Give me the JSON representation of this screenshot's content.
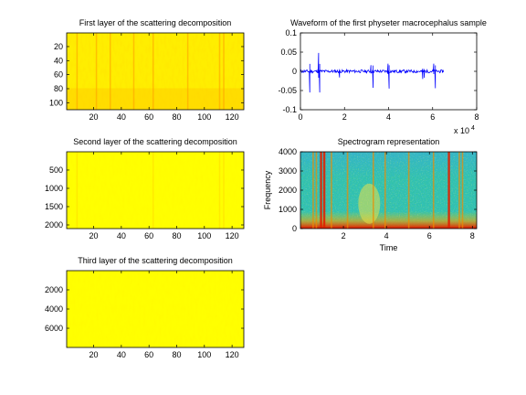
{
  "figure": {
    "background": "#ffffff"
  },
  "chart_data": [
    {
      "id": "layer1",
      "type": "heatmap",
      "title": "First layer of the scattering decomposition",
      "xlabel": "",
      "ylabel": "",
      "xlim": [
        0.5,
        128.5
      ],
      "ylim": [
        0.5,
        110
      ],
      "y_reversed": true,
      "xticks": [
        20,
        40,
        60,
        80,
        100,
        120
      ],
      "yticks": [
        20,
        40,
        60,
        80,
        100
      ],
      "colormap": "jet",
      "base_color": "#ffee00",
      "streak_columns": [
        8,
        22,
        32,
        49,
        63,
        88,
        111,
        114
      ],
      "streak_color": "#ff9d00"
    },
    {
      "id": "waveform",
      "type": "line",
      "title": "Waveform of the first physeter macrocephalus sample",
      "xlabel": "",
      "ylabel": "",
      "xlim": [
        0,
        80000
      ],
      "ylim": [
        -0.1,
        0.1
      ],
      "xticks": [
        0,
        2,
        4,
        6,
        8
      ],
      "x_multiplier_label": "x 10",
      "x_multiplier_exponent": "4",
      "yticks": [
        -0.1,
        -0.05,
        0,
        0.05,
        0.1
      ],
      "line_color": "#0000ff",
      "signal_end": 65000,
      "spikes": [
        {
          "x": 4300,
          "y": -0.055
        },
        {
          "x": 8300,
          "y": 0.048
        },
        {
          "x": 8700,
          "y": -0.055
        },
        {
          "x": 17800,
          "y": -0.016
        },
        {
          "x": 32000,
          "y": 0.016
        },
        {
          "x": 33000,
          "y": -0.043
        },
        {
          "x": 39700,
          "y": 0.02
        },
        {
          "x": 40300,
          "y": -0.045
        },
        {
          "x": 55600,
          "y": -0.02
        },
        {
          "x": 56300,
          "y": -0.017
        },
        {
          "x": 60600,
          "y": 0.02
        },
        {
          "x": 61300,
          "y": -0.044
        }
      ]
    },
    {
      "id": "layer2",
      "type": "heatmap",
      "title": "Second layer of the scattering decomposition",
      "xlabel": "",
      "ylabel": "",
      "xlim": [
        0.5,
        128.5
      ],
      "ylim": [
        1,
        2100
      ],
      "y_reversed": true,
      "xticks": [
        20,
        40,
        60,
        80,
        100,
        120
      ],
      "yticks": [
        500,
        1000,
        1500,
        2000
      ],
      "colormap": "jet",
      "base_color": "#ffff00",
      "streak_columns": [
        8,
        63,
        111,
        114
      ],
      "streak_color": "#ffd800"
    },
    {
      "id": "spectrogram",
      "type": "heatmap",
      "title": "Spectrogram representation",
      "xlabel": "Time",
      "ylabel": "Frequency",
      "xlim": [
        0,
        8.2
      ],
      "ylim": [
        0,
        4000
      ],
      "xticks": [
        2,
        4,
        6,
        8
      ],
      "yticks": [
        0,
        1000,
        2000,
        3000,
        4000
      ],
      "colormap": "jet",
      "base_color": "#31c2aa",
      "click_times": [
        0.6,
        0.75,
        0.95,
        1.1,
        1.45,
        2.2,
        3.4,
        3.95,
        5.05,
        6.2,
        6.9,
        7.4,
        7.55
      ]
    },
    {
      "id": "layer3",
      "type": "heatmap",
      "title": "Third layer of the scattering decomposition",
      "xlabel": "",
      "ylabel": "",
      "xlim": [
        0.5,
        128.5
      ],
      "ylim": [
        1,
        8000
      ],
      "y_reversed": true,
      "xticks": [
        20,
        40,
        60,
        80,
        100,
        120
      ],
      "yticks": [
        2000,
        4000,
        6000
      ],
      "colormap": "jet",
      "base_color": "#ffff00",
      "streak_columns": [],
      "streak_color": "#fff400"
    }
  ]
}
